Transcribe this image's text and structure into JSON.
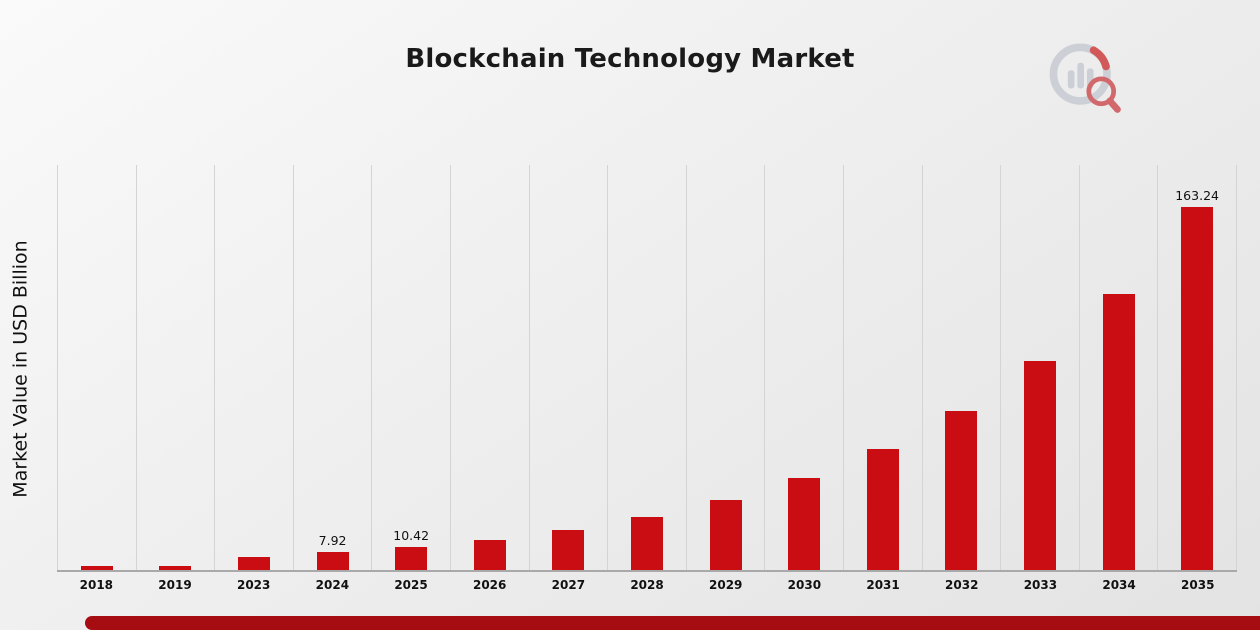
{
  "header": {
    "title": "Blockchain Technology Market"
  },
  "chart_data": {
    "type": "bar",
    "title": "Blockchain Technology Market",
    "xlabel": "",
    "ylabel": "Market Value in USD Billion",
    "ylim": [
      0,
      182
    ],
    "grid": "vertical",
    "legend": "none",
    "bar_color": "#c90d12",
    "categories": [
      "2018",
      "2019",
      "2023",
      "2024",
      "2025",
      "2026",
      "2027",
      "2028",
      "2029",
      "2030",
      "2031",
      "2032",
      "2033",
      "2034",
      "2035"
    ],
    "values": [
      1.6,
      1.9,
      6.0,
      7.92,
      10.42,
      13.7,
      18.1,
      23.8,
      31.3,
      41.2,
      54.3,
      71.5,
      94.1,
      123.9,
      163.24
    ],
    "data_labels": [
      null,
      null,
      null,
      "7.92",
      "10.42",
      null,
      null,
      null,
      null,
      null,
      null,
      null,
      null,
      null,
      "163.24"
    ]
  },
  "footer": {
    "accent_color": "#a50d12"
  },
  "logo": {
    "name": "market-research-logo",
    "ring_color": "#c9cdd4",
    "accent_color": "#cf4a4a"
  }
}
